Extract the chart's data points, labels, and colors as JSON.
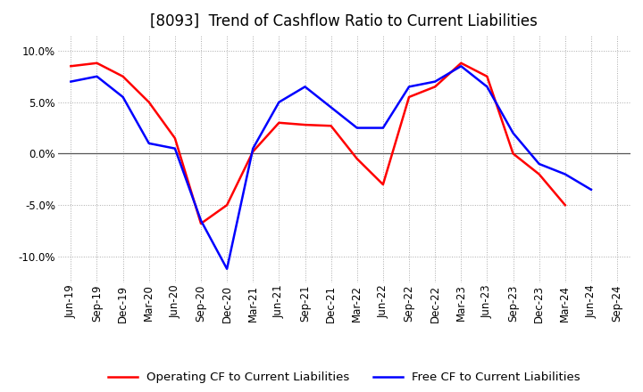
{
  "title": "[8093]  Trend of Cashflow Ratio to Current Liabilities",
  "x_labels": [
    "Jun-19",
    "Sep-19",
    "Dec-19",
    "Mar-20",
    "Jun-20",
    "Sep-20",
    "Dec-20",
    "Mar-21",
    "Jun-21",
    "Sep-21",
    "Dec-21",
    "Mar-22",
    "Jun-22",
    "Sep-22",
    "Dec-22",
    "Mar-23",
    "Jun-23",
    "Sep-23",
    "Dec-23",
    "Mar-24",
    "Jun-24",
    "Sep-24"
  ],
  "operating_cf": [
    8.5,
    8.8,
    7.5,
    5.0,
    1.5,
    -6.8,
    -5.0,
    0.2,
    3.0,
    2.8,
    2.7,
    -0.5,
    -3.0,
    5.5,
    6.5,
    8.8,
    7.5,
    0.0,
    -2.0,
    -5.0,
    null,
    null
  ],
  "free_cf": [
    7.0,
    7.5,
    5.5,
    1.0,
    0.5,
    -6.5,
    -11.2,
    0.5,
    5.0,
    6.5,
    4.5,
    2.5,
    2.5,
    6.5,
    7.0,
    8.5,
    6.5,
    2.0,
    -1.0,
    -2.0,
    -3.5,
    null
  ],
  "operating_cf_color": "#ff0000",
  "free_cf_color": "#0000ff",
  "ylim": [
    -12.5,
    11.5
  ],
  "yticks": [
    -10.0,
    -5.0,
    0.0,
    5.0,
    10.0
  ],
  "legend_labels": [
    "Operating CF to Current Liabilities",
    "Free CF to Current Liabilities"
  ],
  "bg_color": "#ffffff",
  "plot_bg_color": "#ffffff",
  "grid_color": "#aaaaaa",
  "zero_line_color": "#555555",
  "title_fontsize": 12,
  "axis_fontsize": 8.5,
  "legend_fontsize": 9.5,
  "line_width": 1.8
}
